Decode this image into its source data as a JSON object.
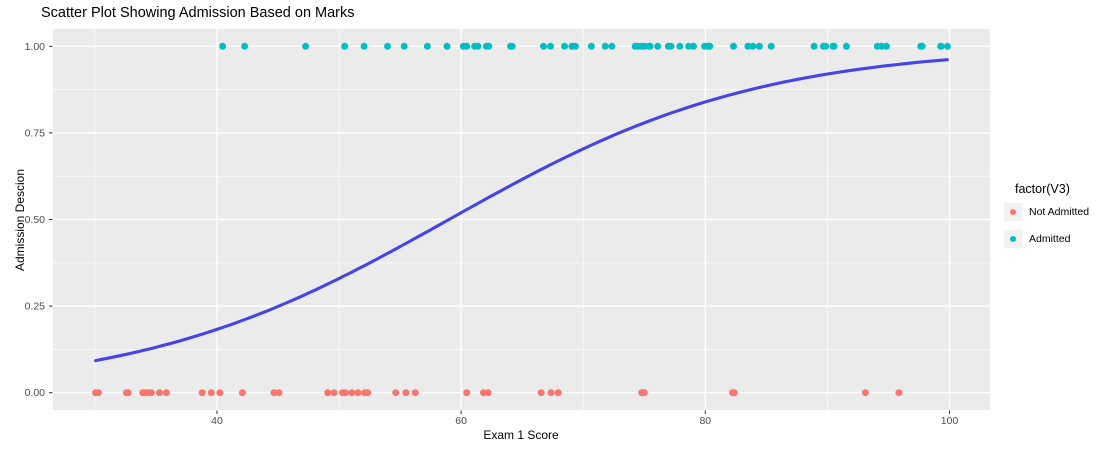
{
  "title": "Scatter Plot Showing Admission Based on Marks",
  "axes": {
    "x": {
      "label": "Exam 1 Score",
      "tick_values": [
        40,
        60,
        80,
        100
      ],
      "tick_labels": [
        "40",
        "60",
        "80",
        "100"
      ],
      "minor_tick_values": [
        30,
        50,
        70,
        90
      ]
    },
    "y": {
      "label": "Admission Descion",
      "tick_values": [
        0,
        0.25,
        0.5,
        0.75,
        1
      ],
      "tick_labels": [
        "0.00",
        "0.25",
        "0.50",
        "0.75",
        "1.00"
      ],
      "minor_tick_values": [
        0.125,
        0.375,
        0.625,
        0.875
      ]
    }
  },
  "legend": {
    "title": "factor(V3)",
    "items": [
      {
        "label": "Not Admitted",
        "color": "#F8766D"
      },
      {
        "label": "Admitted",
        "color": "#00BFC4"
      }
    ]
  },
  "colors": {
    "panel_background": "#EBEBEB",
    "gridline": "#FFFFFF",
    "tick_mark": "#333333",
    "tick_text": "#4D4D4D",
    "trend_line": "#4444E8",
    "legend_key_background": "#F2F2F2"
  },
  "chart_data": {
    "type": "scatter",
    "title": "Scatter Plot Showing Admission Based on Marks",
    "xlabel": "Exam 1 Score",
    "ylabel": "Admission Descion",
    "xlim": [
      26.57,
      103.32
    ],
    "ylim": [
      -0.05,
      1.05
    ],
    "grid": true,
    "legend_position": "right",
    "series": [
      {
        "name": "Not Admitted",
        "color": "#F8766D",
        "y_value": 0,
        "x": [
          34.62,
          30.29,
          35.85,
          45.08,
          95.86,
          75.01,
          39.54,
          67.95,
          67.37,
          50.53,
          34.21,
          93.11,
          61.83,
          38.79,
          52.11,
          40.24,
          54.64,
          33.92,
          74.79,
          34.18,
          51.55,
          82.37,
          51.05,
          62.22,
          34.52,
          50.29,
          49.59,
          32.58,
          35.29,
          56.25,
          30.06,
          44.67,
          66.56,
          49.07,
          32.72,
          60.46,
          82.23,
          42.08,
          52.35,
          55.48
        ]
      },
      {
        "name": "Admitted",
        "color": "#00BFC4",
        "y_value": 1,
        "x": [
          60.18,
          79.03,
          61.11,
          75.02,
          76.1,
          84.43,
          82.31,
          69.36,
          53.97,
          69.07,
          70.66,
          76.98,
          89.68,
          77.92,
          62.27,
          80.19,
          61.38,
          85.4,
          52.05,
          64.18,
          83.9,
          94.44,
          77.19,
          97.77,
          62.07,
          91.56,
          79.94,
          99.27,
          90.55,
          97.65,
          74.25,
          71.8,
          75.4,
          40.46,
          80.28,
          66.75,
          64.04,
          72.35,
          60.46,
          58.84,
          99.83,
          47.26,
          50.46,
          88.91,
          94.83,
          67.32,
          57.24,
          80.37,
          68.47,
          75.48,
          78.64,
          94.09,
          90.45,
          74.49,
          89.85,
          83.49,
          42.26,
          99.32,
          55.34,
          74.78
        ]
      }
    ],
    "trend_line": {
      "model": "logistic",
      "intercept": -4.65,
      "slope": 0.0788,
      "x_range": [
        30.06,
        99.83
      ],
      "color": "#4444E8"
    }
  }
}
